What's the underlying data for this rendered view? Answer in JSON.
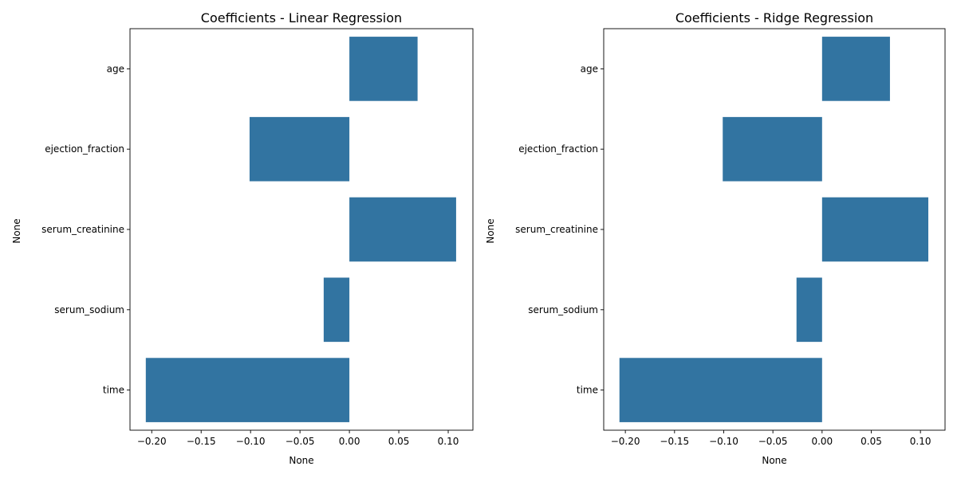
{
  "chart_data": [
    {
      "type": "bar",
      "orientation": "horizontal",
      "title": "Coefficients - Linear Regression",
      "xlabel": "None",
      "ylabel": "None",
      "categories": [
        "age",
        "ejection_fraction",
        "serum_creatinine",
        "serum_sodium",
        "time"
      ],
      "values": [
        0.069,
        -0.101,
        0.108,
        -0.026,
        -0.206
      ],
      "xlim": [
        -0.222,
        0.125
      ],
      "xticks": [
        -0.2,
        -0.15,
        -0.1,
        -0.05,
        0.0,
        0.05,
        0.1
      ],
      "xtick_labels": [
        "−0.20",
        "−0.15",
        "−0.10",
        "−0.05",
        "0.00",
        "0.05",
        "0.10"
      ],
      "bar_color": "#3274a1",
      "grid": false,
      "legend": "none"
    },
    {
      "type": "bar",
      "orientation": "horizontal",
      "title": "Coefficients - Ridge Regression",
      "xlabel": "None",
      "ylabel": "None",
      "categories": [
        "age",
        "ejection_fraction",
        "serum_creatinine",
        "serum_sodium",
        "time"
      ],
      "values": [
        0.069,
        -0.101,
        0.108,
        -0.026,
        -0.206
      ],
      "xlim": [
        -0.222,
        0.125
      ],
      "xticks": [
        -0.2,
        -0.15,
        -0.1,
        -0.05,
        0.0,
        0.05,
        0.1
      ],
      "xtick_labels": [
        "−0.20",
        "−0.15",
        "−0.10",
        "−0.05",
        "0.00",
        "0.05",
        "0.10"
      ],
      "bar_color": "#3274a1",
      "grid": false,
      "legend": "none"
    }
  ]
}
